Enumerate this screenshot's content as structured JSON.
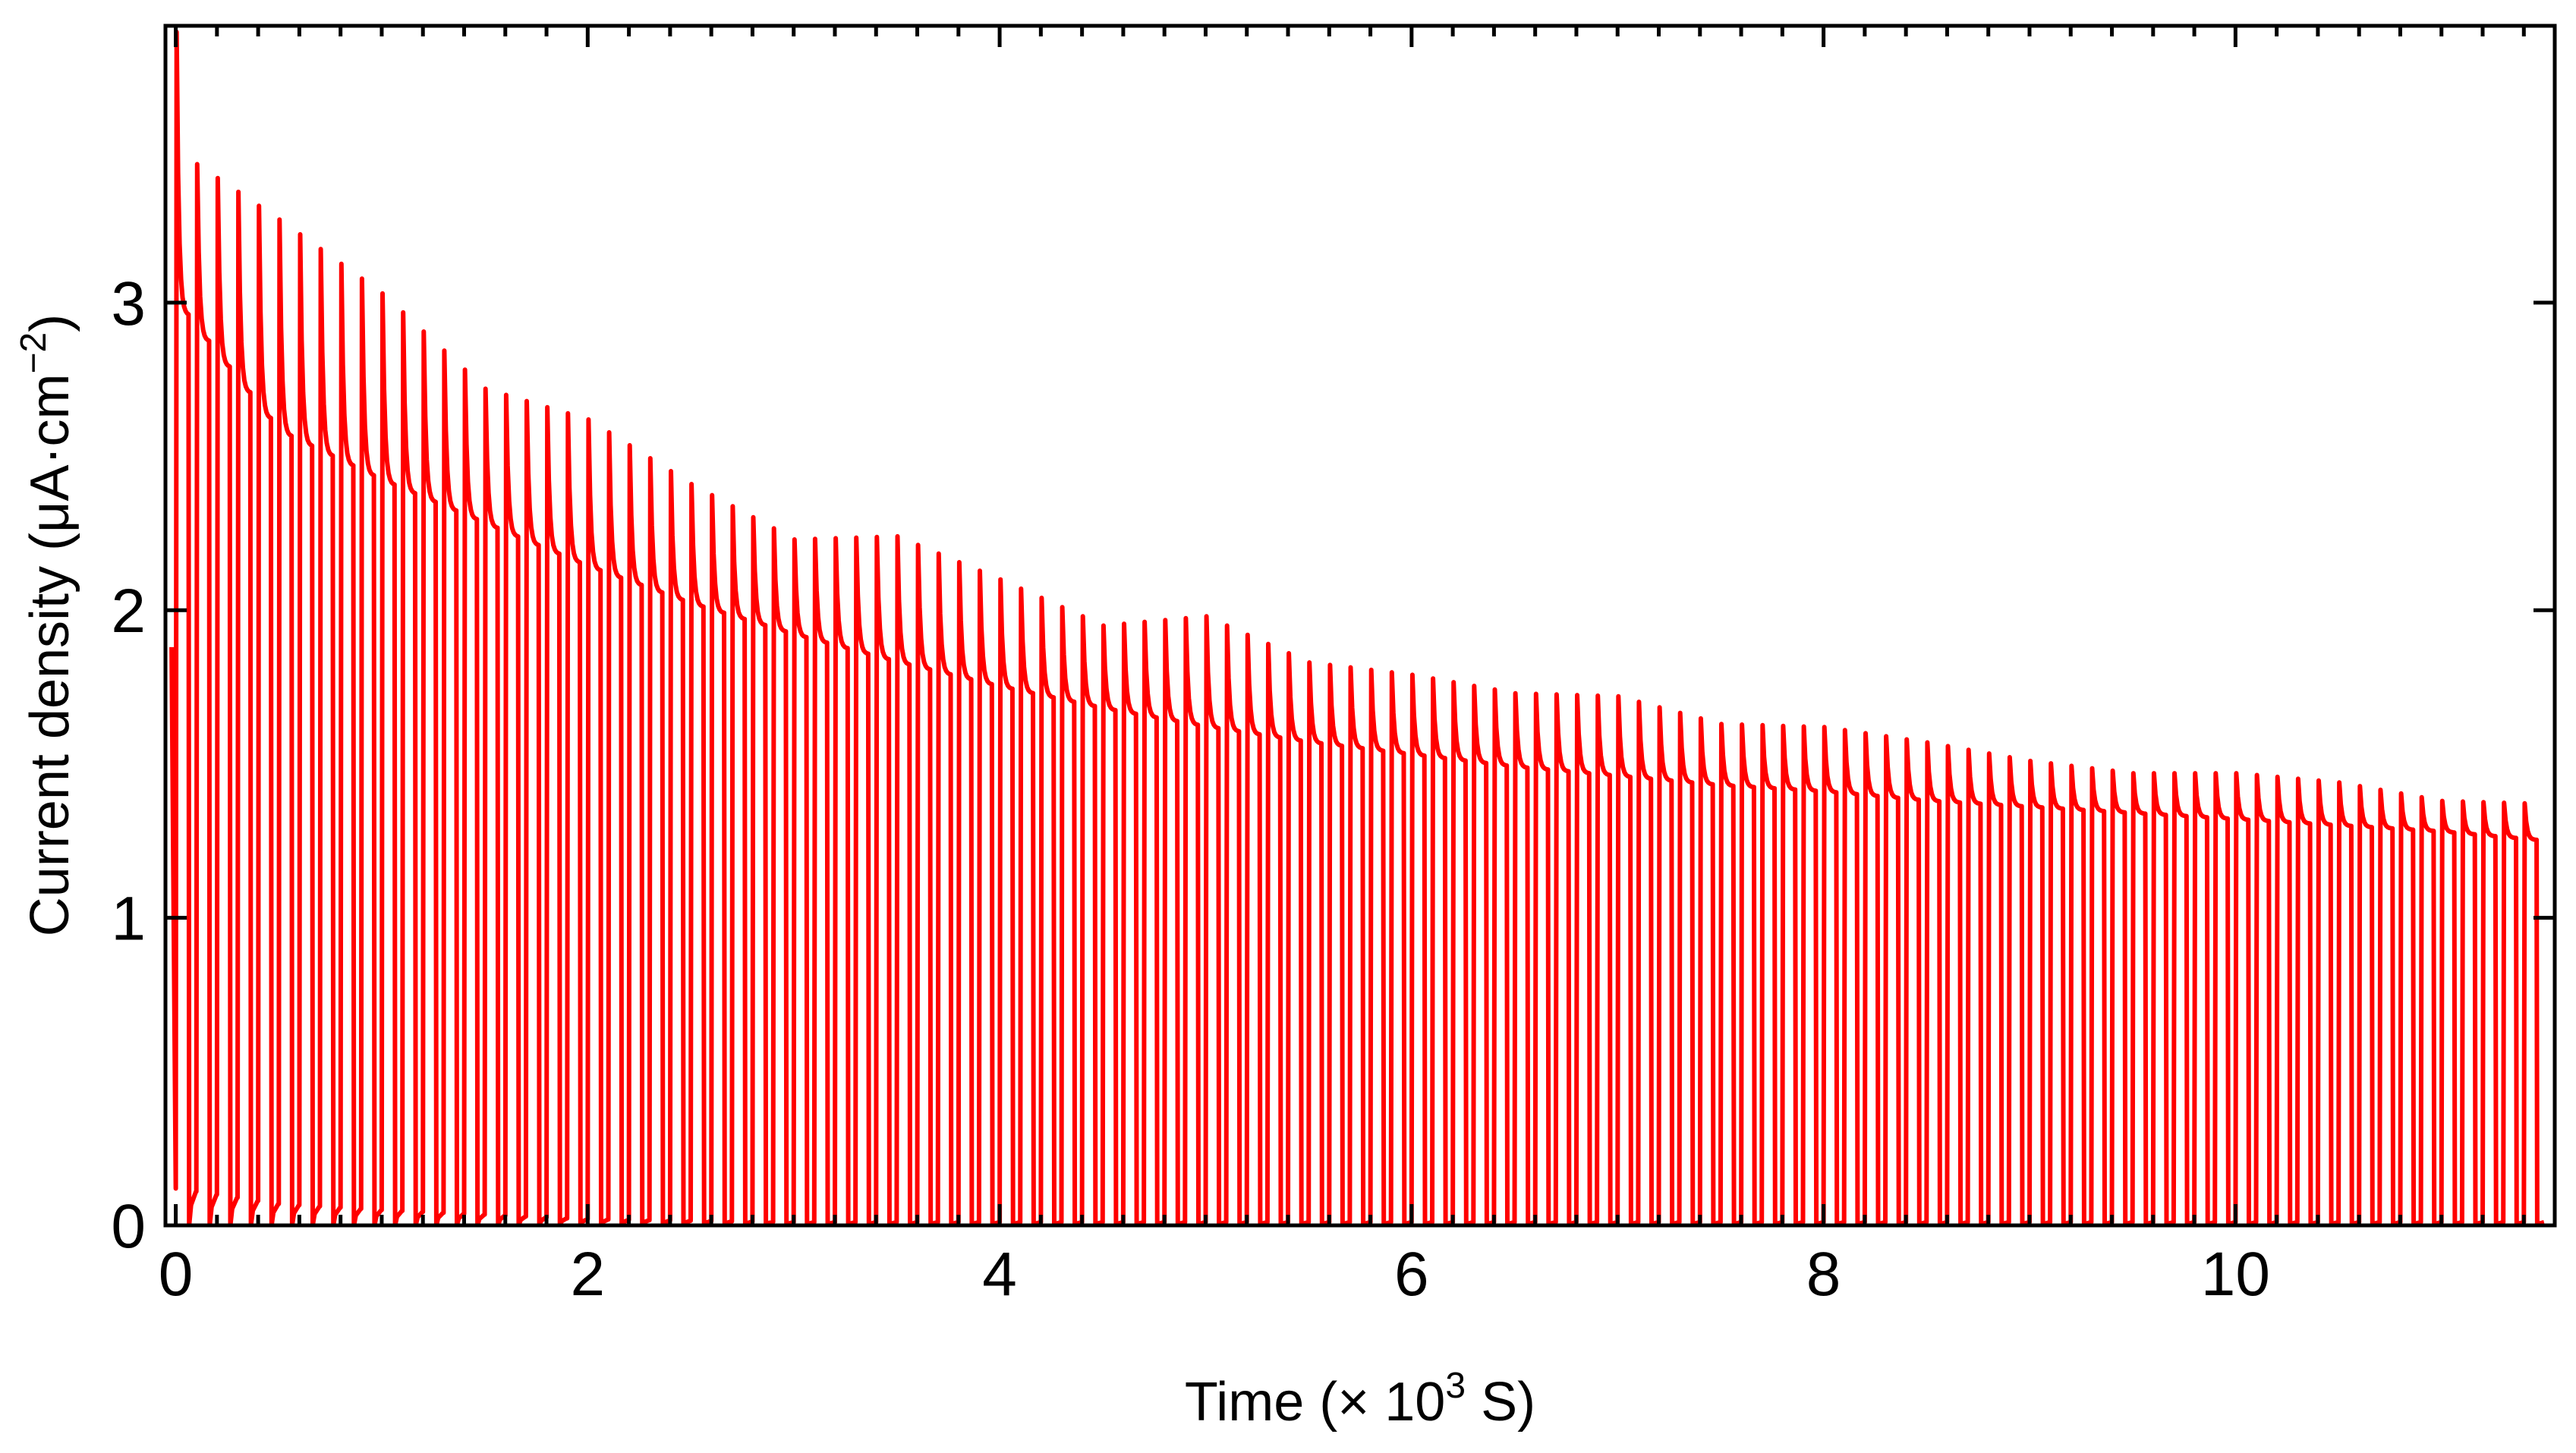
{
  "chart_data": {
    "type": "line",
    "title": "",
    "xlabel_prefix": "Time (× 10",
    "xlabel_sup": "3",
    "xlabel_suffix": " S)",
    "ylabel_prefix": "Current density (μA·cm",
    "ylabel_sup": "−2",
    "ylabel_suffix": ")",
    "xlim": [
      -0.05,
      11.55
    ],
    "ylim": [
      0,
      3.9
    ],
    "x_ticks": [
      0,
      2,
      4,
      6,
      8,
      10
    ],
    "x_tick_labels": [
      "0",
      "2",
      "4",
      "6",
      "8",
      "10"
    ],
    "y_ticks": [
      0,
      1,
      2,
      3
    ],
    "y_tick_labels": [
      "0",
      "1",
      "2",
      "3"
    ],
    "grid": false,
    "legend": "none",
    "series_color": "#ff0000",
    "series": [
      {
        "description_cycles": {
          "period_x1e3s": 0.1,
          "count": 115
        },
        "peak_envelope": {
          "x": [
            0,
            0.1,
            0.5,
            1.0,
            1.5,
            2.0,
            2.5,
            3.0,
            3.5,
            4.0,
            4.5,
            5.0,
            5.5,
            6.0,
            6.5,
            7.0,
            7.5,
            8.0,
            8.5,
            9.0,
            9.5,
            10.0,
            10.5,
            11.0,
            11.5
          ],
          "y": [
            3.88,
            3.45,
            3.27,
            3.03,
            2.72,
            2.62,
            2.41,
            2.23,
            2.24,
            2.1,
            1.95,
            1.98,
            1.83,
            1.79,
            1.73,
            1.72,
            1.63,
            1.62,
            1.57,
            1.51,
            1.47,
            1.47,
            1.44,
            1.38,
            1.37
          ]
        },
        "plateau_envelope": {
          "x": [
            0,
            0.5,
            1.0,
            1.5,
            2.0,
            2.5,
            3.0,
            3.5,
            4.0,
            4.5,
            5.0,
            5.5,
            6.0,
            6.5,
            7.0,
            7.5,
            8.0,
            8.5,
            9.0,
            9.5,
            10.0,
            10.5,
            11.0,
            11.5
          ],
          "y": [
            3.0,
            2.58,
            2.42,
            2.28,
            2.14,
            2.02,
            1.92,
            1.83,
            1.75,
            1.68,
            1.62,
            1.57,
            1.53,
            1.49,
            1.46,
            1.43,
            1.41,
            1.38,
            1.36,
            1.34,
            1.32,
            1.3,
            1.28,
            1.25
          ]
        },
        "trough_envelope": {
          "x": [
            0,
            0.5,
            1.0,
            2.0,
            3.0,
            11.5
          ],
          "y": [
            0.12,
            0.07,
            0.05,
            0.02,
            0.01,
            0.01
          ]
        }
      }
    ]
  }
}
